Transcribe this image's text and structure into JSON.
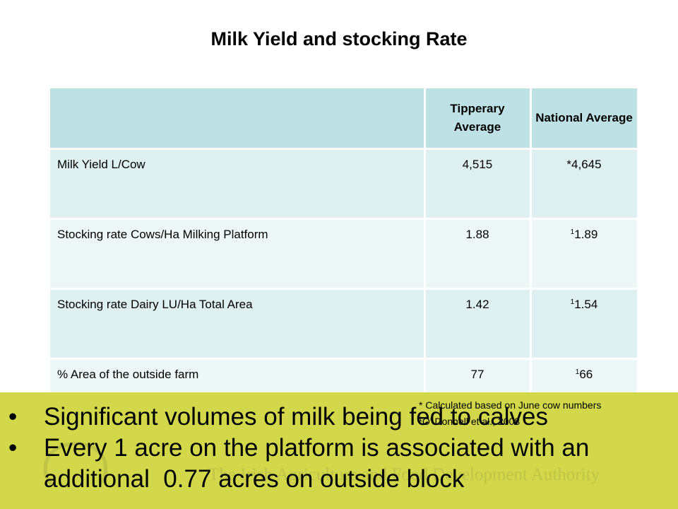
{
  "title": "Milk Yield and stocking Rate",
  "table": {
    "headers": [
      "",
      "Tipperary Average",
      "National Average"
    ],
    "rows": [
      {
        "label": "Milk Yield L/Cow",
        "tipperary": "4,515",
        "national_sup": "",
        "national": "*4,645"
      },
      {
        "label": "Stocking rate Cows/Ha Milking Platform",
        "tipperary": "1.88",
        "national_sup": "1",
        "national": "1.89"
      },
      {
        "label": "Stocking rate Dairy LU/Ha Total Area",
        "tipperary": "1.42",
        "national_sup": "1",
        "national": "1.54"
      },
      {
        "label": "% Area of the outside farm",
        "tipperary": "77",
        "national_sup": "1",
        "national": "66"
      }
    ]
  },
  "footnotes": {
    "note1": "* Calculated based on June cow numbers",
    "note2_sup": "1",
    "note2": "O' Donnell et al., 2008"
  },
  "bullets": [
    "Significant volumes of milk being fed to calves",
    "Every 1 acre on the platform is associated with an additional  0.77 acres on outside block"
  ],
  "bullet_symbol": "•",
  "background_logo": {
    "org_name": "The Irish Agriculture and Food Development Authority",
    "wordmark": "Teagasc"
  },
  "colors": {
    "header_fill": "#bde1e5",
    "row_fill_odd": "#dff0f2",
    "row_fill_even": "#eef7f8",
    "band_fill": "#d2d84a"
  }
}
